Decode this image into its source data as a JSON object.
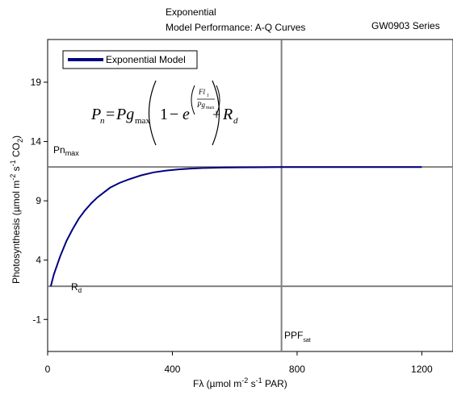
{
  "chart_data": {
    "type": "line",
    "title_line1": "Exponential",
    "title_line2": "Model Performance: A-Q Curves",
    "series_label": "GW0903 Series",
    "xlabel": {
      "base": "Fλ (µmol m",
      "exp1": "-2",
      "mid": " s",
      "exp2": "-1",
      "end": " PAR)"
    },
    "ylabel": {
      "base": "Photosynthesis (µmol m",
      "exp1": "-2",
      "mid": " s",
      "exp2": "-1",
      "end": " CO",
      "sub": "2",
      "close": ")"
    },
    "xlim": [
      0,
      1300
    ],
    "ylim": [
      -3.7,
      22.6
    ],
    "xticks": [
      0,
      400,
      800,
      1200
    ],
    "yticks": [
      -1,
      4,
      9,
      14,
      19
    ],
    "grid": false,
    "legend_position": "top-left",
    "series": [
      {
        "name": "Exponential Model",
        "color": "#00007f",
        "x": [
          10,
          20,
          40,
          60,
          80,
          100,
          120,
          140,
          160,
          180,
          200,
          230,
          260,
          300,
          340,
          380,
          420,
          460,
          500,
          560,
          620,
          680,
          740,
          800,
          900,
          1000,
          1100,
          1200
        ],
        "y": [
          1.8,
          2.8,
          4.3,
          5.6,
          6.6,
          7.5,
          8.2,
          8.8,
          9.3,
          9.7,
          10.1,
          10.5,
          10.8,
          11.15,
          11.4,
          11.55,
          11.65,
          11.72,
          11.77,
          11.8,
          11.82,
          11.83,
          11.84,
          11.84,
          11.85,
          11.85,
          11.85,
          11.85
        ]
      }
    ],
    "reference_lines": {
      "pn_max_y": 11.85,
      "rd_y": 1.8,
      "ppf_sat_x": 750
    },
    "annotations": {
      "pn_max": {
        "base": "Pn",
        "sub": "max"
      },
      "rd": {
        "base": "R",
        "sub": "d"
      },
      "ppf_sat": {
        "base": "PPF",
        "sub": "sat"
      }
    },
    "equation": {
      "lhs": "P",
      "lhs_sub": "n",
      "eq": "=",
      "pg": "Pg",
      "pg_sub": "max",
      "one": "1",
      "minus": "−",
      "e": "e",
      "exp_num": "Fl",
      "exp_num_sub": "1",
      "exp_den": "Pg",
      "exp_den_sub": "max",
      "plus": "+",
      "rd": "R",
      "rd_sub": "d"
    }
  }
}
